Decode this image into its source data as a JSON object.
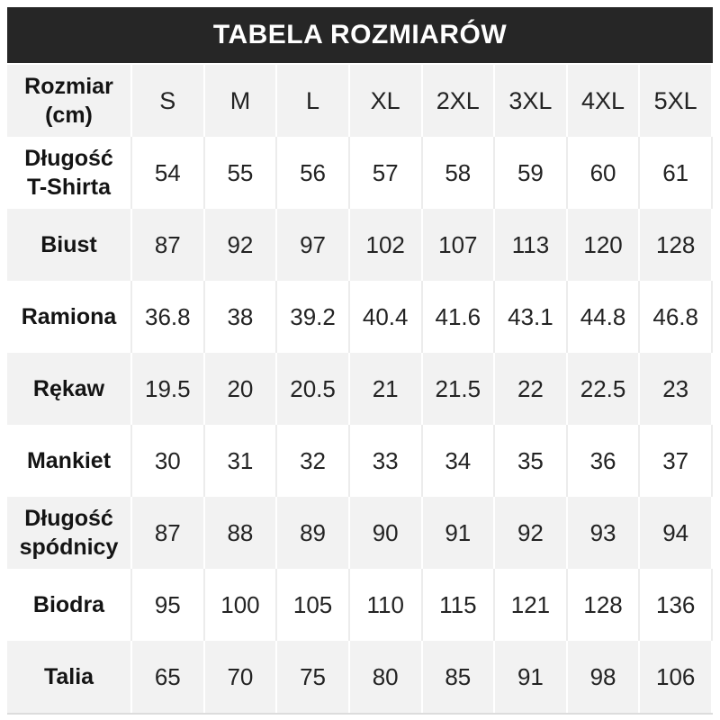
{
  "chart_data": {
    "type": "table",
    "title": "TABELA ROZMIARÓW",
    "corner": {
      "line1": "Rozmiar",
      "line2": "(cm)"
    },
    "columns": [
      "S",
      "M",
      "L",
      "XL",
      "2XL",
      "3XL",
      "4XL",
      "5XL"
    ],
    "rows": [
      {
        "label": "Długość T-Shirta",
        "values": [
          "54",
          "55",
          "56",
          "57",
          "58",
          "59",
          "60",
          "61"
        ]
      },
      {
        "label": "Biust",
        "values": [
          "87",
          "92",
          "97",
          "102",
          "107",
          "113",
          "120",
          "128"
        ]
      },
      {
        "label": "Ramiona",
        "values": [
          "36.8",
          "38",
          "39.2",
          "40.4",
          "41.6",
          "43.1",
          "44.8",
          "46.8"
        ]
      },
      {
        "label": "Rękaw",
        "values": [
          "19.5",
          "20",
          "20.5",
          "21",
          "21.5",
          "22",
          "22.5",
          "23"
        ]
      },
      {
        "label": "Mankiet",
        "values": [
          "30",
          "31",
          "32",
          "33",
          "34",
          "35",
          "36",
          "37"
        ]
      },
      {
        "label": "Długość spódnicy",
        "values": [
          "87",
          "88",
          "89",
          "90",
          "91",
          "92",
          "93",
          "94"
        ]
      },
      {
        "label": "Biodra",
        "values": [
          "95",
          "100",
          "105",
          "110",
          "115",
          "121",
          "128",
          "136"
        ]
      },
      {
        "label": "Talia",
        "values": [
          "65",
          "70",
          "75",
          "80",
          "85",
          "91",
          "98",
          "106"
        ]
      }
    ],
    "layout": {
      "striped": true,
      "shaded_rows": "header, Biust, Rękaw, Długość spódnicy, Talia",
      "units": "cm"
    }
  },
  "colors": {
    "page_bg": "#ffffff",
    "title_bar_bg": "#262626",
    "title_text": "#ffffff",
    "row_alt_bg": "#f2f2f2",
    "grid_on_gray": "#ffffff",
    "grid_on_white": "#ececec",
    "label_text": "#141414",
    "value_text": "#232323",
    "table_bottom_border": "#dcdcdc"
  }
}
